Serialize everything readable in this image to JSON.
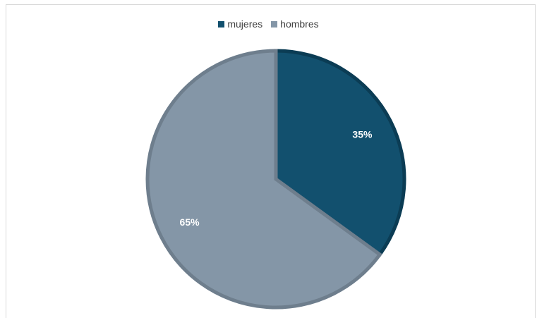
{
  "chart_data": {
    "type": "pie",
    "title": "",
    "categories": [
      "mujeres",
      "hombres"
    ],
    "values": [
      35,
      65
    ],
    "labels": [
      "35%",
      "65%"
    ],
    "colors": [
      "#12506e",
      "#8496a7"
    ],
    "edge_colors": [
      "#0b3c54",
      "#6e7e8d"
    ],
    "legend_position": "top"
  }
}
